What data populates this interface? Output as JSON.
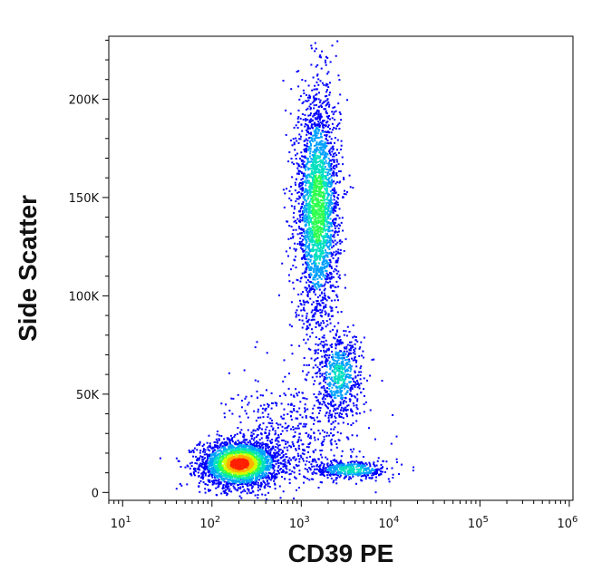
{
  "chart_data": {
    "type": "scatter",
    "subtype": "flow-cytometry density dot plot",
    "xlabel": "CD39 PE",
    "ylabel": "Side Scatter",
    "x_scale": "log",
    "xlim": [
      7,
      1100000
    ],
    "ylim": [
      -4000,
      232000
    ],
    "x_ticks": [
      {
        "value": 10,
        "base": "10",
        "exp": "1"
      },
      {
        "value": 100,
        "base": "10",
        "exp": "2"
      },
      {
        "value": 1000,
        "base": "10",
        "exp": "3"
      },
      {
        "value": 10000,
        "base": "10",
        "exp": "4"
      },
      {
        "value": 100000,
        "base": "10",
        "exp": "5"
      },
      {
        "value": 1000000,
        "base": "10",
        "exp": "6"
      }
    ],
    "y_ticks": [
      {
        "value": 0,
        "label": "0"
      },
      {
        "value": 50000,
        "label": "50K"
      },
      {
        "value": 100000,
        "label": "100K"
      },
      {
        "value": 150000,
        "label": "150K"
      },
      {
        "value": 200000,
        "label": "200K"
      }
    ],
    "colormap": [
      "#0000ff",
      "#00a0ff",
      "#00e0c0",
      "#30ff50",
      "#d0ff00",
      "#ffb000",
      "#ff2000"
    ],
    "grid": false,
    "legend": "none",
    "populations": [
      {
        "x_center": 200,
        "y_center": 15000,
        "x_spread_log": 0.22,
        "y_spread": 6000,
        "count": 2600,
        "peak_density": 1.0
      },
      {
        "x_center": 1500,
        "y_center": 145000,
        "x_spread_log": 0.12,
        "y_spread": 30000,
        "count": 2600,
        "peak_density": 0.55
      },
      {
        "x_center": 2600,
        "y_center": 60000,
        "x_spread_log": 0.13,
        "y_spread": 11000,
        "count": 650,
        "peak_density": 0.35
      },
      {
        "x_center": 3500,
        "y_center": 12000,
        "x_spread_log": 0.22,
        "y_spread": 2500,
        "count": 450,
        "peak_density": 0.4
      },
      {
        "x_center": 800,
        "y_center": 30000,
        "x_spread_log": 0.35,
        "y_spread": 14000,
        "count": 500,
        "peak_density": 0.1
      }
    ]
  }
}
